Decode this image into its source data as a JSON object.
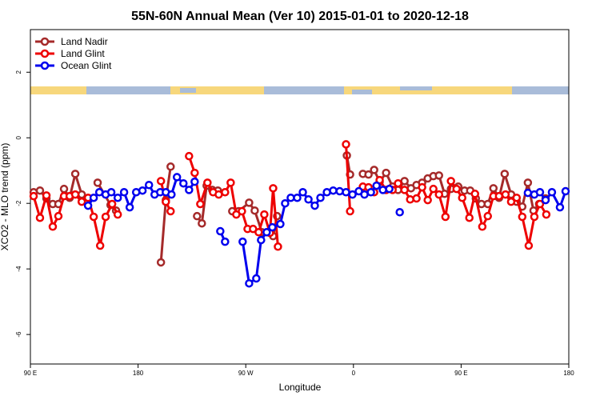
{
  "chart_data": {
    "type": "line",
    "title": "55N-60N Annual Mean (Ver 10)   2015-01-01 to 2020-12-18",
    "x_label": "Longitude",
    "y_label": "XCO2 - MLO trend (ppm)",
    "xlim": [
      90,
      540
    ],
    "ylim": [
      -6.9,
      3.3
    ],
    "xticks": [
      {
        "value": 90,
        "label": "90 E"
      },
      180,
      {
        "value": 270,
        "label": "90 W"
      },
      {
        "value": 360,
        "label": "0"
      },
      {
        "value": 450,
        "label": "90 E"
      },
      {
        "value": 540,
        "label": "180"
      }
    ],
    "yticks": [
      -6,
      -4,
      -2,
      0,
      2
    ],
    "legend": "top-left",
    "series": [
      {
        "name": "Land Nadir",
        "color": "#a52a2a",
        "x": [
          92.7,
          98.0,
          103.4,
          108.7,
          113.4,
          118.1,
          122.8,
          127.5,
          132.9,
          136.9,
          null,
          146.2,
          157.0,
          161.6,
          null,
          199.1,
          203.2,
          207.2,
          null,
          229.3,
          233.3,
          237.3,
          242.0,
          246.7,
          null,
          258.7,
          264.1,
          272.8,
          277.5,
          283.5,
          288.2,
          292.9,
          296.2,
          null,
          354.5,
          357.2,
          null,
          367.9,
          372.6,
          377.3,
          381.9,
          387.3,
          392.7,
          397.3,
          402.7,
          408.1,
          412.7,
          417.4,
          422.1,
          426.8,
          431.5,
          436.2,
          441.5,
          null,
          447.6,
          452.9,
          457.6,
          462.3,
          467.0,
          472.3,
          477.0,
          481.7,
          486.4,
          491.8,
          496.4,
          501.1,
          505.8,
          510.5,
          515.2,
          520.6
        ],
        "values": [
          -1.66,
          -1.61,
          -1.85,
          -2.02,
          -2.02,
          -1.56,
          -1.83,
          -1.1,
          -1.73,
          -1.9,
          null,
          -1.37,
          -2.05,
          -2.22,
          null,
          -3.8,
          -1.9,
          -0.88,
          null,
          -2.39,
          -2.61,
          -1.46,
          -1.59,
          -1.61,
          null,
          -2.24,
          -2.24,
          -1.98,
          -2.22,
          -2.88,
          -2.88,
          -3.0,
          -2.39,
          null,
          -0.54,
          -1.12,
          null,
          -1.1,
          -1.12,
          -0.98,
          -1.34,
          -1.07,
          -1.49,
          -1.59,
          -1.32,
          -1.54,
          -1.44,
          -1.37,
          -1.24,
          -1.17,
          -1.15,
          -1.71,
          -1.56,
          null,
          -1.49,
          -1.61,
          -1.61,
          -1.85,
          -2.02,
          -2.02,
          -1.54,
          -1.83,
          -1.1,
          -1.73,
          -1.95,
          -2.1,
          -1.37,
          -2.22,
          -2.02,
          -1.85
        ]
      },
      {
        "name": "Land Glint",
        "color": "#ee0000",
        "x": [
          92.7,
          98.0,
          103.4,
          108.7,
          113.4,
          118.1,
          122.8,
          127.5,
          132.9,
          138.2,
          142.9,
          148.3,
          152.9,
          158.3,
          163.0,
          null,
          199.1,
          203.2,
          207.2,
          null,
          222.6,
          227.3,
          232.0,
          238.0,
          242.7,
          247.4,
          252.7,
          257.4,
          262.1,
          266.8,
          271.5,
          276.1,
          280.8,
          285.5,
          290.2,
          292.9,
          296.9,
          null,
          353.8,
          357.2,
          null,
          367.9,
          372.6,
          377.3,
          381.9,
          387.3,
          392.7,
          397.3,
          402.7,
          407.4,
          412.7,
          417.4,
          422.1,
          426.8,
          431.5,
          436.9,
          441.5,
          446.2,
          450.9,
          456.9,
          461.6,
          467.7,
          472.3,
          477.0,
          481.7,
          487.1,
          491.8,
          496.4,
          501.1,
          506.5,
          511.2,
          515.9,
          521.2
        ],
        "values": [
          -1.78,
          -2.44,
          -1.76,
          -2.71,
          -2.39,
          -1.78,
          -1.78,
          -1.73,
          -1.95,
          -1.83,
          -2.41,
          -3.29,
          -2.41,
          -2.02,
          -2.34,
          null,
          -1.32,
          -1.95,
          -2.24,
          null,
          -0.56,
          -1.07,
          -2.02,
          -1.37,
          -1.66,
          -1.73,
          -1.66,
          -1.37,
          -2.34,
          -2.24,
          -2.78,
          -2.78,
          -2.88,
          -2.34,
          -2.9,
          -1.54,
          -3.32,
          null,
          -0.2,
          -2.24,
          null,
          -1.49,
          -1.51,
          -1.66,
          -1.29,
          -1.59,
          -1.59,
          -1.39,
          -1.59,
          -1.88,
          -1.85,
          -1.51,
          -1.9,
          -1.56,
          -1.73,
          -2.41,
          -1.32,
          -1.56,
          -1.83,
          -2.44,
          -1.71,
          -2.71,
          -2.39,
          -1.78,
          -1.78,
          -1.73,
          -1.95,
          -1.83,
          -2.41,
          -3.29,
          -2.41,
          -2.02,
          -2.34
        ]
      },
      {
        "name": "Ocean Glint",
        "color": "#0000ee",
        "x": [
          138.2,
          142.9,
          147.6,
          152.9,
          157.6,
          163.0,
          168.3,
          173.0,
          178.4,
          183.7,
          189.1,
          193.8,
          198.5,
          203.2,
          207.9,
          212.5,
          217.9,
          222.6,
          227.3,
          null,
          248.7,
          252.7,
          null,
          267.4,
          272.8,
          278.8,
          282.8,
          287.5,
          292.2,
          298.9,
          302.9,
          307.6,
          313.0,
          317.7,
          322.4,
          327.7,
          332.4,
          337.8,
          343.1,
          348.5,
          353.8,
          359.2,
          364.5,
          369.2,
          374.6,
          379.3,
          384.6,
          390.0,
          null,
          398.7,
          null,
          505.8,
          511.2,
          515.9,
          520.6,
          525.9,
          532.6,
          537.3
        ],
        "values": [
          -2.07,
          -1.83,
          -1.66,
          -1.73,
          -1.66,
          -1.83,
          -1.66,
          -2.12,
          -1.66,
          -1.61,
          -1.44,
          -1.73,
          -1.66,
          -1.66,
          -1.73,
          -1.2,
          -1.39,
          -1.59,
          -1.34,
          null,
          -2.85,
          -3.17,
          null,
          -3.17,
          -4.44,
          -4.29,
          -3.12,
          -2.88,
          -2.73,
          -2.63,
          -2.0,
          -1.83,
          -1.83,
          -1.66,
          -1.88,
          -2.07,
          -1.83,
          -1.66,
          -1.61,
          -1.63,
          -1.66,
          -1.73,
          -1.63,
          -1.73,
          -1.66,
          -1.46,
          -1.59,
          -1.56,
          null,
          -2.27,
          null,
          -1.68,
          -1.73,
          -1.66,
          -1.9,
          -1.66,
          -2.12,
          -1.63
        ]
      }
    ]
  }
}
